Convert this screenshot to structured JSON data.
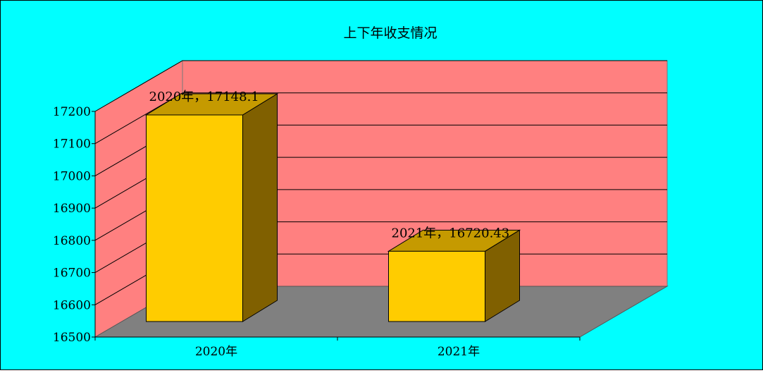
{
  "chart_data": {
    "type": "bar",
    "title": "上下年收支情况",
    "categories": [
      "2020年",
      "2021年"
    ],
    "values": [
      17148.1,
      16720.43
    ],
    "data_labels": [
      "2020年，17148.1",
      "2021年，16720.43"
    ],
    "ylim": [
      16500,
      17200
    ],
    "yticks": [
      "17200",
      "17100",
      "17000",
      "16900",
      "16800",
      "16700",
      "16600",
      "16500"
    ],
    "xlabel": "",
    "ylabel": "",
    "grid": true,
    "legend": "none",
    "style": "3d-column"
  },
  "colors": {
    "background": "#00FFFF",
    "back_wall": "#FF8080",
    "floor": "#808080",
    "bar_front": "#FFCC00",
    "bar_top": "#C59A00",
    "bar_side": "#806000"
  }
}
